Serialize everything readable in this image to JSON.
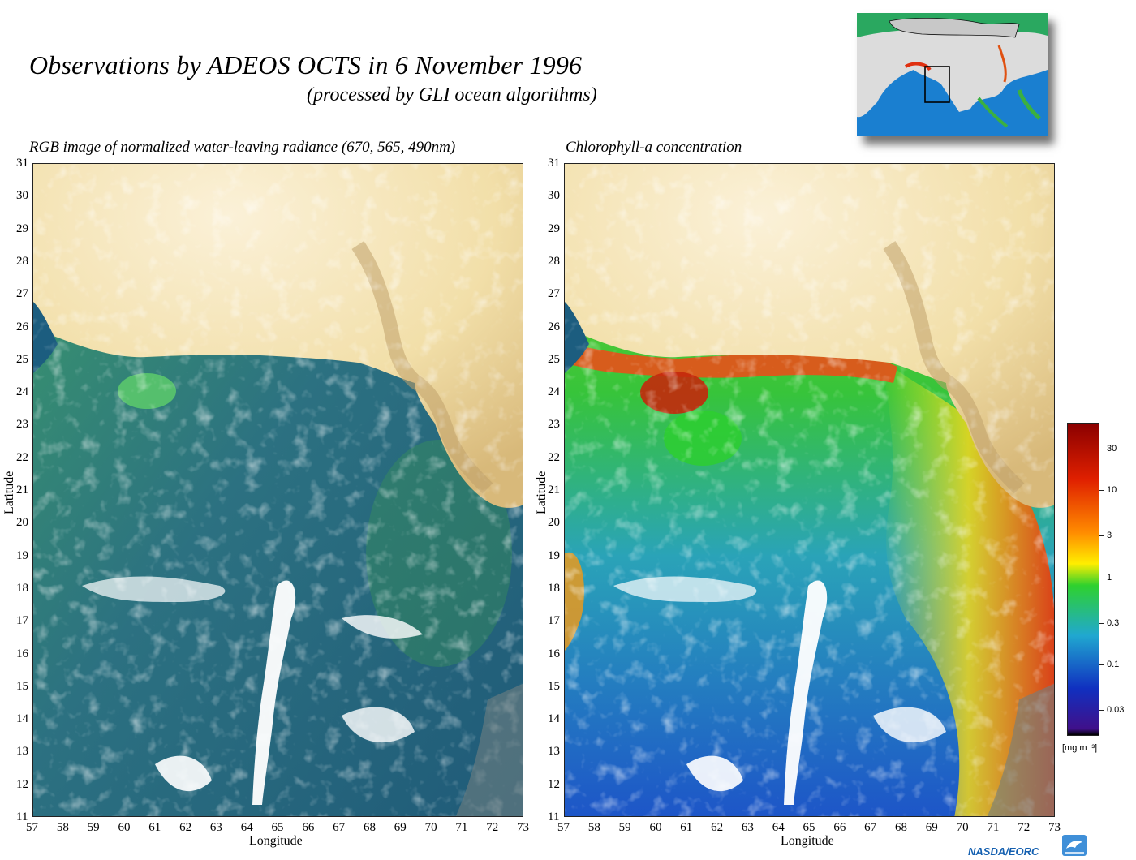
{
  "header": {
    "title": "Observations by ADEOS OCTS in 6 November 1996",
    "subtitle": "(processed by GLI ocean algorithms)"
  },
  "maps": {
    "left_title": "RGB image of normalized water-leaving radiance (670, 565, 490nm)",
    "right_title": "Chlorophyll-a concentration",
    "x_axis_title": "Longitude",
    "y_axis_title": "Latitude",
    "longitudes": [
      "57",
      "58",
      "59",
      "60",
      "61",
      "62",
      "63",
      "64",
      "65",
      "66",
      "67",
      "68",
      "69",
      "70",
      "71",
      "72",
      "73"
    ],
    "latitudes": [
      "31",
      "30",
      "29",
      "28",
      "27",
      "26",
      "25",
      "24",
      "23",
      "22",
      "21",
      "20",
      "19",
      "18",
      "17",
      "16",
      "15",
      "14",
      "13",
      "12",
      "11"
    ]
  },
  "colorbar": {
    "labels": [
      "30",
      "10",
      "3",
      "1",
      "0.3",
      "0.1",
      "0.03"
    ],
    "unit": "[mg m⁻³]",
    "colors": {
      "high": "#8b0000",
      "red": "#e02000",
      "orange": "#ff8c00",
      "yellow": "#ffee00",
      "green": "#2ed12e",
      "cyan": "#20a8d0",
      "blue": "#1030c0",
      "low": "#40108a"
    }
  },
  "logo": {
    "text": "NASDA/EORC"
  },
  "palette": {
    "land": "#f5e9c6",
    "land_dark": "#c9a872",
    "ocean_rgb": "#2f6f7a",
    "cloud": "#ffffff"
  }
}
